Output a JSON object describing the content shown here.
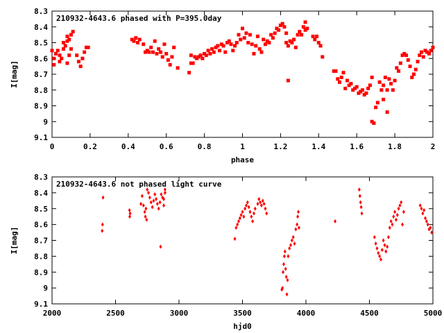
{
  "chart_data": [
    {
      "type": "scatter",
      "title": "210932-4643.6 phased with P=395.0day",
      "xlabel": "phase",
      "ylabel": "I[mag]",
      "xlim": [
        0,
        2
      ],
      "ylim": [
        9.1,
        8.3
      ],
      "y_inverted": true,
      "grid": false,
      "marker_color": "#ff0000",
      "marker": "filled-square",
      "x_ticks": [
        "0",
        "0.2",
        "0.4",
        "0.6",
        "0.8",
        "1",
        "1.2",
        "1.4",
        "1.6",
        "1.8",
        "2"
      ],
      "y_ticks": [
        "8.3",
        "8.4",
        "8.5",
        "8.6",
        "8.7",
        "8.8",
        "8.9",
        "9",
        "9.1"
      ],
      "points": [
        [
          0.0,
          8.55
        ],
        [
          0.01,
          8.6
        ],
        [
          0.01,
          8.64
        ],
        [
          0.02,
          8.57
        ],
        [
          0.03,
          8.55
        ],
        [
          0.04,
          8.58
        ],
        [
          0.04,
          8.62
        ],
        [
          0.05,
          8.6
        ],
        [
          0.06,
          8.54
        ],
        [
          0.06,
          8.5
        ],
        [
          0.07,
          8.52
        ],
        [
          0.08,
          8.49
        ],
        [
          0.08,
          8.46
        ],
        [
          0.09,
          8.48
        ],
        [
          0.09,
          8.58
        ],
        [
          0.1,
          8.45
        ],
        [
          0.1,
          8.54
        ],
        [
          0.11,
          8.43
        ],
        [
          0.08,
          8.63
        ],
        [
          0.13,
          8.58
        ],
        [
          0.14,
          8.62
        ],
        [
          0.15,
          8.65
        ],
        [
          0.16,
          8.6
        ],
        [
          0.17,
          8.56
        ],
        [
          0.18,
          8.53
        ],
        [
          0.19,
          8.53
        ],
        [
          0.42,
          8.48
        ],
        [
          0.43,
          8.49
        ],
        [
          0.44,
          8.47
        ],
        [
          0.45,
          8.5
        ],
        [
          0.46,
          8.48
        ],
        [
          0.48,
          8.51
        ],
        [
          0.49,
          8.56
        ],
        [
          0.5,
          8.55
        ],
        [
          0.51,
          8.56
        ],
        [
          0.52,
          8.53
        ],
        [
          0.53,
          8.56
        ],
        [
          0.54,
          8.49
        ],
        [
          0.55,
          8.57
        ],
        [
          0.56,
          8.54
        ],
        [
          0.57,
          8.56
        ],
        [
          0.58,
          8.59
        ],
        [
          0.59,
          8.51
        ],
        [
          0.6,
          8.57
        ],
        [
          0.61,
          8.61
        ],
        [
          0.62,
          8.64
        ],
        [
          0.63,
          8.59
        ],
        [
          0.64,
          8.53
        ],
        [
          0.66,
          8.66
        ],
        [
          0.72,
          8.69
        ],
        [
          0.73,
          8.58
        ],
        [
          0.73,
          8.63
        ],
        [
          0.74,
          8.63
        ],
        [
          0.75,
          8.59
        ],
        [
          0.76,
          8.6
        ],
        [
          0.77,
          8.59
        ],
        [
          0.78,
          8.58
        ],
        [
          0.79,
          8.6
        ],
        [
          0.8,
          8.57
        ],
        [
          0.81,
          8.58
        ],
        [
          0.82,
          8.55
        ],
        [
          0.83,
          8.57
        ],
        [
          0.84,
          8.54
        ],
        [
          0.85,
          8.56
        ],
        [
          0.86,
          8.53
        ],
        [
          0.87,
          8.52
        ],
        [
          0.88,
          8.55
        ],
        [
          0.89,
          8.51
        ],
        [
          0.9,
          8.52
        ],
        [
          0.91,
          8.56
        ],
        [
          0.92,
          8.5
        ],
        [
          0.93,
          8.49
        ],
        [
          0.94,
          8.51
        ],
        [
          0.95,
          8.55
        ],
        [
          0.96,
          8.52
        ],
        [
          0.97,
          8.5
        ],
        [
          0.98,
          8.45
        ],
        [
          0.99,
          8.48
        ],
        [
          1.0,
          8.41
        ],
        [
          1.01,
          8.47
        ],
        [
          1.02,
          8.44
        ],
        [
          1.03,
          8.5
        ],
        [
          1.04,
          8.45
        ],
        [
          1.05,
          8.51
        ],
        [
          1.06,
          8.57
        ],
        [
          1.07,
          8.52
        ],
        [
          1.08,
          8.46
        ],
        [
          1.09,
          8.54
        ],
        [
          1.1,
          8.56
        ],
        [
          1.11,
          8.48
        ],
        [
          1.12,
          8.51
        ],
        [
          1.13,
          8.49
        ],
        [
          1.14,
          8.5
        ],
        [
          1.15,
          8.45
        ],
        [
          1.16,
          8.47
        ],
        [
          1.17,
          8.44
        ],
        [
          1.18,
          8.41
        ],
        [
          1.19,
          8.42
        ],
        [
          1.2,
          8.39
        ],
        [
          1.21,
          8.38
        ],
        [
          1.22,
          8.4
        ],
        [
          1.23,
          8.44
        ],
        [
          1.23,
          8.5
        ],
        [
          1.24,
          8.52
        ],
        [
          1.24,
          8.74
        ],
        [
          1.25,
          8.49
        ],
        [
          1.26,
          8.5
        ],
        [
          1.27,
          8.48
        ],
        [
          1.28,
          8.53
        ],
        [
          1.29,
          8.45
        ],
        [
          1.3,
          8.43
        ],
        [
          1.31,
          8.45
        ],
        [
          1.32,
          8.4
        ],
        [
          1.33,
          8.37
        ],
        [
          1.33,
          8.42
        ],
        [
          1.34,
          8.41
        ],
        [
          1.37,
          8.46
        ],
        [
          1.38,
          8.48
        ],
        [
          1.39,
          8.46
        ],
        [
          1.4,
          8.5
        ],
        [
          1.41,
          8.52
        ],
        [
          1.42,
          8.59
        ],
        [
          1.48,
          8.68
        ],
        [
          1.49,
          8.68
        ],
        [
          1.5,
          8.73
        ],
        [
          1.51,
          8.75
        ],
        [
          1.52,
          8.72
        ],
        [
          1.53,
          8.69
        ],
        [
          1.54,
          8.79
        ],
        [
          1.55,
          8.74
        ],
        [
          1.56,
          8.77
        ],
        [
          1.57,
          8.76
        ],
        [
          1.58,
          8.8
        ],
        [
          1.59,
          8.79
        ],
        [
          1.6,
          8.78
        ],
        [
          1.61,
          8.82
        ],
        [
          1.62,
          8.81
        ],
        [
          1.63,
          8.8
        ],
        [
          1.64,
          8.83
        ],
        [
          1.65,
          8.82
        ],
        [
          1.66,
          8.79
        ],
        [
          1.67,
          8.77
        ],
        [
          1.68,
          8.72
        ],
        [
          1.68,
          9.0
        ],
        [
          1.69,
          9.01
        ],
        [
          1.7,
          8.91
        ],
        [
          1.71,
          8.88
        ],
        [
          1.72,
          8.75
        ],
        [
          1.73,
          8.8
        ],
        [
          1.74,
          8.77
        ],
        [
          1.74,
          8.86
        ],
        [
          1.75,
          8.72
        ],
        [
          1.76,
          8.94
        ],
        [
          1.76,
          8.8
        ],
        [
          1.77,
          8.73
        ],
        [
          1.78,
          8.76
        ],
        [
          1.79,
          8.8
        ],
        [
          1.8,
          8.74
        ],
        [
          1.81,
          8.66
        ],
        [
          1.82,
          8.68
        ],
        [
          1.83,
          8.63
        ],
        [
          1.84,
          8.58
        ],
        [
          1.85,
          8.57
        ],
        [
          1.86,
          8.58
        ],
        [
          1.87,
          8.61
        ],
        [
          1.88,
          8.65
        ],
        [
          1.89,
          8.72
        ],
        [
          1.9,
          8.7
        ],
        [
          1.91,
          8.67
        ],
        [
          1.92,
          8.62
        ],
        [
          1.93,
          8.58
        ],
        [
          1.94,
          8.56
        ],
        [
          1.95,
          8.59
        ],
        [
          1.96,
          8.55
        ],
        [
          1.97,
          8.56
        ],
        [
          1.98,
          8.57
        ],
        [
          1.99,
          8.55
        ],
        [
          2.0,
          8.53
        ]
      ]
    },
    {
      "type": "scatter",
      "title": "210932-4643.6 not phased light curve",
      "xlabel": "hjd0",
      "ylabel": "I[mag]",
      "xlim": [
        2000,
        5000
      ],
      "ylim": [
        9.1,
        8.3
      ],
      "y_inverted": true,
      "grid": false,
      "marker_color": "#ff0000",
      "marker": "filled-diamond",
      "x_ticks": [
        "2000",
        "2500",
        "3000",
        "3500",
        "4000",
        "4500",
        "5000"
      ],
      "y_ticks": [
        "8.3",
        "8.4",
        "8.5",
        "8.6",
        "8.7",
        "8.8",
        "8.9",
        "9",
        "9.1"
      ],
      "points": [
        [
          2395,
          8.64
        ],
        [
          2398,
          8.6
        ],
        [
          2402,
          8.43
        ],
        [
          2610,
          8.51
        ],
        [
          2612,
          8.55
        ],
        [
          2615,
          8.53
        ],
        [
          2700,
          8.47
        ],
        [
          2710,
          8.42
        ],
        [
          2720,
          8.48
        ],
        [
          2730,
          8.52
        ],
        [
          2740,
          8.5
        ],
        [
          2750,
          8.38
        ],
        [
          2760,
          8.4
        ],
        [
          2770,
          8.43
        ],
        [
          2780,
          8.46
        ],
        [
          2790,
          8.49
        ],
        [
          2800,
          8.45
        ],
        [
          2810,
          8.41
        ],
        [
          2820,
          8.44
        ],
        [
          2830,
          8.47
        ],
        [
          2840,
          8.5
        ],
        [
          2850,
          8.46
        ],
        [
          2855,
          8.74
        ],
        [
          2860,
          8.41
        ],
        [
          2870,
          8.43
        ],
        [
          2880,
          8.44
        ],
        [
          2890,
          8.4
        ],
        [
          2880,
          8.48
        ],
        [
          2890,
          8.38
        ],
        [
          2735,
          8.55
        ],
        [
          2745,
          8.57
        ],
        [
          3440,
          8.69
        ],
        [
          3450,
          8.62
        ],
        [
          3460,
          8.6
        ],
        [
          3470,
          8.58
        ],
        [
          3480,
          8.56
        ],
        [
          3490,
          8.54
        ],
        [
          3500,
          8.52
        ],
        [
          3510,
          8.55
        ],
        [
          3520,
          8.5
        ],
        [
          3530,
          8.48
        ],
        [
          3540,
          8.46
        ],
        [
          3550,
          8.49
        ],
        [
          3560,
          8.52
        ],
        [
          3570,
          8.55
        ],
        [
          3580,
          8.58
        ],
        [
          3590,
          8.53
        ],
        [
          3600,
          8.5
        ],
        [
          3620,
          8.47
        ],
        [
          3630,
          8.44
        ],
        [
          3640,
          8.46
        ],
        [
          3650,
          8.48
        ],
        [
          3660,
          8.45
        ],
        [
          3670,
          8.47
        ],
        [
          3680,
          8.5
        ],
        [
          3690,
          8.53
        ],
        [
          3810,
          9.01
        ],
        [
          3815,
          9.0
        ],
        [
          3820,
          8.9
        ],
        [
          3825,
          8.85
        ],
        [
          3830,
          8.8
        ],
        [
          3835,
          8.77
        ],
        [
          3840,
          8.88
        ],
        [
          3845,
          8.93
        ],
        [
          3850,
          9.04
        ],
        [
          3855,
          8.95
        ],
        [
          3860,
          8.8
        ],
        [
          3870,
          8.75
        ],
        [
          3880,
          8.73
        ],
        [
          3890,
          8.7
        ],
        [
          3900,
          8.68
        ],
        [
          3910,
          8.72
        ],
        [
          3920,
          8.63
        ],
        [
          3930,
          8.6
        ],
        [
          3935,
          8.55
        ],
        [
          3940,
          8.52
        ],
        [
          3945,
          8.62
        ],
        [
          4230,
          8.58
        ],
        [
          4420,
          8.38
        ],
        [
          4425,
          8.42
        ],
        [
          4430,
          8.46
        ],
        [
          4435,
          8.49
        ],
        [
          4440,
          8.53
        ],
        [
          4540,
          8.68
        ],
        [
          4550,
          8.72
        ],
        [
          4560,
          8.75
        ],
        [
          4570,
          8.78
        ],
        [
          4580,
          8.8
        ],
        [
          4590,
          8.82
        ],
        [
          4600,
          8.76
        ],
        [
          4610,
          8.7
        ],
        [
          4620,
          8.73
        ],
        [
          4630,
          8.77
        ],
        [
          4640,
          8.74
        ],
        [
          4650,
          8.68
        ],
        [
          4660,
          8.62
        ],
        [
          4670,
          8.58
        ],
        [
          4680,
          8.6
        ],
        [
          4690,
          8.55
        ],
        [
          4700,
          8.52
        ],
        [
          4710,
          8.57
        ],
        [
          4720,
          8.54
        ],
        [
          4730,
          8.5
        ],
        [
          4740,
          8.48
        ],
        [
          4750,
          8.46
        ],
        [
          4760,
          8.6
        ],
        [
          4770,
          8.52
        ],
        [
          4900,
          8.48
        ],
        [
          4910,
          8.5
        ],
        [
          4920,
          8.53
        ],
        [
          4930,
          8.51
        ],
        [
          4940,
          8.56
        ],
        [
          4950,
          8.58
        ],
        [
          4960,
          8.6
        ],
        [
          4970,
          8.63
        ],
        [
          4980,
          8.62
        ],
        [
          4990,
          8.65
        ]
      ]
    }
  ]
}
